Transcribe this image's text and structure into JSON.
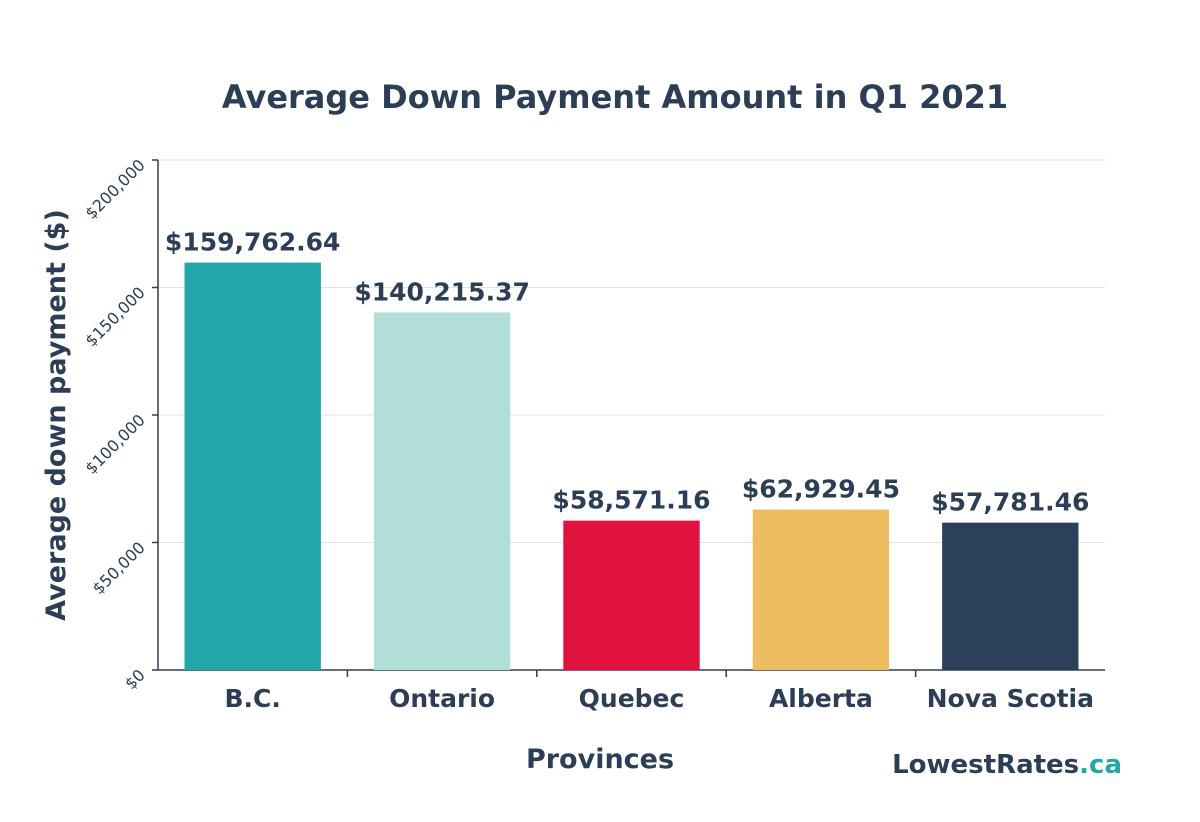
{
  "chart_data": {
    "type": "bar",
    "title": "Average Down Payment Amount in Q1 2021",
    "xlabel": "Provinces",
    "ylabel": "Average down payment ($)",
    "categories": [
      "B.C.",
      "Ontario",
      "Quebec",
      "Alberta",
      "Nova Scotia"
    ],
    "values": [
      159762.64,
      140215.37,
      58571.16,
      62929.45,
      57781.46
    ],
    "data_labels": [
      "$159,762.64",
      "$140,215.37",
      "$58,571.16",
      "$62,929.45",
      "$57,781.46"
    ],
    "colors": [
      "#22a6a8",
      "#b2ded8",
      "#e2123f",
      "#eebd5f",
      "#2c4059"
    ],
    "ylim": [
      0,
      200000
    ],
    "yticks": [
      0,
      50000,
      100000,
      150000,
      200000
    ],
    "ytick_labels": [
      "$0",
      "$50,000",
      "$100,000",
      "$150,000",
      "$200,000"
    ],
    "grid": true,
    "legend": "none"
  },
  "branding": {
    "logo_main": "LowestRates",
    "logo_suffix": ".ca",
    "logo_main_color": "#2c3e55",
    "logo_suffix_color": "#22a6a8"
  }
}
